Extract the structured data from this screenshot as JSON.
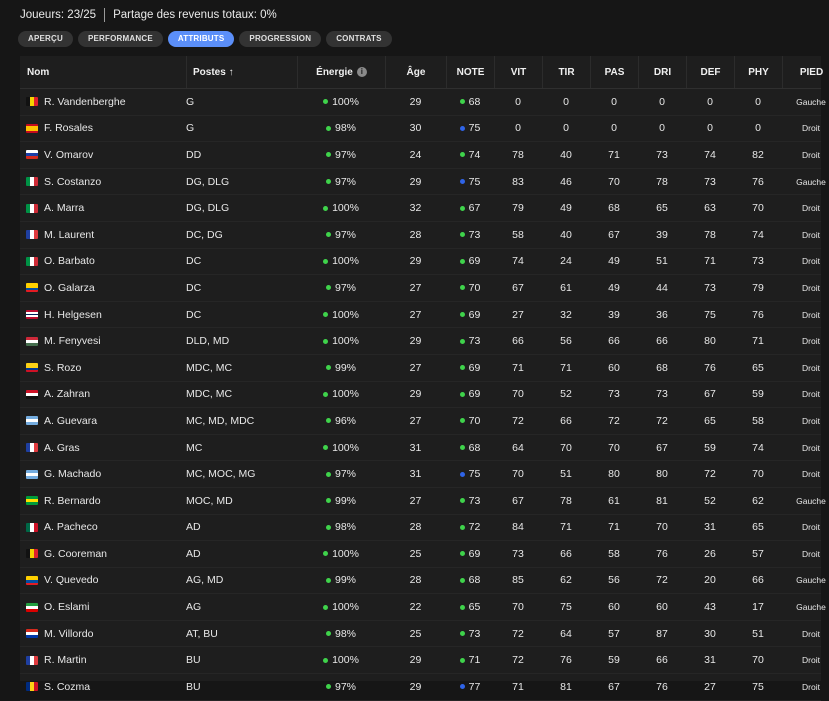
{
  "header": {
    "players": "Joueurs: 23/25",
    "revenue_share": "Partage des revenus totaux: 0%"
  },
  "tabs": [
    {
      "label": "APERÇU",
      "active": false
    },
    {
      "label": "PERFORMANCE",
      "active": false
    },
    {
      "label": "ATTRIBUTS",
      "active": true
    },
    {
      "label": "PROGRESSION",
      "active": false
    },
    {
      "label": "CONTRATS",
      "active": false
    }
  ],
  "columns": {
    "name": "Nom",
    "positions": "Postes ↑",
    "energy": "Énergie",
    "age": "Âge",
    "note": "NOTE",
    "vit": "VIT",
    "tir": "TIR",
    "pas": "PAS",
    "dri": "DRI",
    "def": "DEF",
    "phy": "PHY",
    "foot": "PIED"
  },
  "colors": {
    "accent": "#5b8ff9",
    "green": "#3fd34b",
    "blue": "#2f64e8"
  },
  "players": [
    {
      "flag": "be",
      "name": "R. Vandenberghe",
      "pos": "G",
      "energy": "100%",
      "age": "29",
      "note": "68",
      "nd": "g",
      "vit": "0",
      "tir": "0",
      "pas": "0",
      "dri": "0",
      "def": "0",
      "phy": "0",
      "foot": "Gauche"
    },
    {
      "flag": "es",
      "name": "F. Rosales",
      "pos": "G",
      "energy": "98%",
      "age": "30",
      "note": "75",
      "nd": "b",
      "vit": "0",
      "tir": "0",
      "pas": "0",
      "dri": "0",
      "def": "0",
      "phy": "0",
      "foot": "Droit"
    },
    {
      "flag": "ru",
      "name": "V. Omarov",
      "pos": "DD",
      "energy": "97%",
      "age": "24",
      "note": "74",
      "nd": "g",
      "vit": "78",
      "tir": "40",
      "pas": "71",
      "dri": "73",
      "def": "74",
      "phy": "82",
      "foot": "Droit"
    },
    {
      "flag": "it",
      "name": "S. Costanzo",
      "pos": "DG, DLG",
      "energy": "97%",
      "age": "29",
      "note": "75",
      "nd": "b",
      "vit": "83",
      "tir": "46",
      "pas": "70",
      "dri": "78",
      "def": "73",
      "phy": "76",
      "foot": "Gauche"
    },
    {
      "flag": "it",
      "name": "A. Marra",
      "pos": "DG, DLG",
      "energy": "100%",
      "age": "32",
      "note": "67",
      "nd": "g",
      "vit": "79",
      "tir": "49",
      "pas": "68",
      "dri": "65",
      "def": "63",
      "phy": "70",
      "foot": "Droit"
    },
    {
      "flag": "fr",
      "name": "M. Laurent",
      "pos": "DC, DG",
      "energy": "97%",
      "age": "28",
      "note": "73",
      "nd": "g",
      "vit": "58",
      "tir": "40",
      "pas": "67",
      "dri": "39",
      "def": "78",
      "phy": "74",
      "foot": "Droit"
    },
    {
      "flag": "it",
      "name": "O. Barbato",
      "pos": "DC",
      "energy": "100%",
      "age": "29",
      "note": "69",
      "nd": "g",
      "vit": "74",
      "tir": "24",
      "pas": "49",
      "dri": "51",
      "def": "71",
      "phy": "73",
      "foot": "Droit"
    },
    {
      "flag": "ec",
      "name": "O. Galarza",
      "pos": "DC",
      "energy": "97%",
      "age": "27",
      "note": "70",
      "nd": "g",
      "vit": "67",
      "tir": "61",
      "pas": "49",
      "dri": "44",
      "def": "73",
      "phy": "79",
      "foot": "Droit"
    },
    {
      "flag": "no",
      "name": "H. Helgesen",
      "pos": "DC",
      "energy": "100%",
      "age": "27",
      "note": "69",
      "nd": "g",
      "vit": "27",
      "tir": "32",
      "pas": "39",
      "dri": "36",
      "def": "75",
      "phy": "76",
      "foot": "Droit"
    },
    {
      "flag": "hu",
      "name": "M. Fenyvesi",
      "pos": "DLD, MD",
      "energy": "100%",
      "age": "29",
      "note": "73",
      "nd": "g",
      "vit": "66",
      "tir": "56",
      "pas": "66",
      "dri": "66",
      "def": "80",
      "phy": "71",
      "foot": "Droit"
    },
    {
      "flag": "co",
      "name": "S. Rozo",
      "pos": "MDC, MC",
      "energy": "99%",
      "age": "27",
      "note": "69",
      "nd": "g",
      "vit": "71",
      "tir": "71",
      "pas": "60",
      "dri": "68",
      "def": "76",
      "phy": "65",
      "foot": "Droit"
    },
    {
      "flag": "eg",
      "name": "A. Zahran",
      "pos": "MDC, MC",
      "energy": "100%",
      "age": "29",
      "note": "69",
      "nd": "g",
      "vit": "70",
      "tir": "52",
      "pas": "73",
      "dri": "73",
      "def": "67",
      "phy": "59",
      "foot": "Droit"
    },
    {
      "flag": "ar",
      "name": "A. Guevara",
      "pos": "MC, MD, MDC",
      "energy": "96%",
      "age": "27",
      "note": "70",
      "nd": "g",
      "vit": "72",
      "tir": "66",
      "pas": "72",
      "dri": "72",
      "def": "65",
      "phy": "58",
      "foot": "Droit"
    },
    {
      "flag": "fr",
      "name": "A. Gras",
      "pos": "MC",
      "energy": "100%",
      "age": "31",
      "note": "68",
      "nd": "g",
      "vit": "64",
      "tir": "70",
      "pas": "70",
      "dri": "67",
      "def": "59",
      "phy": "74",
      "foot": "Droit"
    },
    {
      "flag": "ar",
      "name": "G. Machado",
      "pos": "MC, MOC, MG",
      "energy": "97%",
      "age": "31",
      "note": "75",
      "nd": "b",
      "vit": "70",
      "tir": "51",
      "pas": "80",
      "dri": "80",
      "def": "72",
      "phy": "70",
      "foot": "Droit"
    },
    {
      "flag": "br",
      "name": "R. Bernardo",
      "pos": "MOC, MD",
      "energy": "99%",
      "age": "27",
      "note": "73",
      "nd": "g",
      "vit": "67",
      "tir": "78",
      "pas": "61",
      "dri": "81",
      "def": "52",
      "phy": "62",
      "foot": "Gauche"
    },
    {
      "flag": "mx",
      "name": "A. Pacheco",
      "pos": "AD",
      "energy": "98%",
      "age": "28",
      "note": "72",
      "nd": "g",
      "vit": "84",
      "tir": "71",
      "pas": "71",
      "dri": "70",
      "def": "31",
      "phy": "65",
      "foot": "Droit"
    },
    {
      "flag": "be",
      "name": "G. Cooreman",
      "pos": "AD",
      "energy": "100%",
      "age": "25",
      "note": "69",
      "nd": "g",
      "vit": "73",
      "tir": "66",
      "pas": "58",
      "dri": "76",
      "def": "26",
      "phy": "57",
      "foot": "Droit"
    },
    {
      "flag": "ec",
      "name": "V. Quevedo",
      "pos": "AG, MD",
      "energy": "99%",
      "age": "28",
      "note": "68",
      "nd": "g",
      "vit": "85",
      "tir": "62",
      "pas": "56",
      "dri": "72",
      "def": "20",
      "phy": "66",
      "foot": "Gauche"
    },
    {
      "flag": "ir",
      "name": "O. Eslami",
      "pos": "AG",
      "energy": "100%",
      "age": "22",
      "note": "65",
      "nd": "g",
      "vit": "70",
      "tir": "75",
      "pas": "60",
      "dri": "60",
      "def": "43",
      "phy": "17",
      "foot": "Gauche"
    },
    {
      "flag": "py",
      "name": "M. Villordo",
      "pos": "AT, BU",
      "energy": "98%",
      "age": "25",
      "note": "73",
      "nd": "g",
      "vit": "72",
      "tir": "64",
      "pas": "57",
      "dri": "87",
      "def": "30",
      "phy": "51",
      "foot": "Droit"
    },
    {
      "flag": "fr",
      "name": "R. Martin",
      "pos": "BU",
      "energy": "100%",
      "age": "29",
      "note": "71",
      "nd": "g",
      "vit": "72",
      "tir": "76",
      "pas": "59",
      "dri": "66",
      "def": "31",
      "phy": "70",
      "foot": "Droit"
    },
    {
      "flag": "ro",
      "name": "S. Cozma",
      "pos": "BU",
      "energy": "97%",
      "age": "29",
      "note": "77",
      "nd": "b",
      "vit": "71",
      "tir": "81",
      "pas": "67",
      "dri": "76",
      "def": "27",
      "phy": "75",
      "foot": "Droit"
    }
  ]
}
